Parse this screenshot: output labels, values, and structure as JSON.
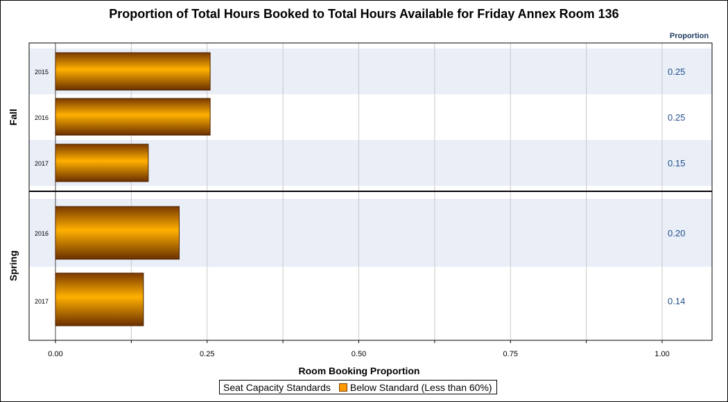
{
  "chart_data": {
    "type": "bar",
    "orientation": "horizontal",
    "title": "Proportion of Total Hours Booked to Total Hours Available for Friday Annex Room 136",
    "xlabel": "Room Booking Proportion",
    "value_column_header": "Proportion",
    "xlim": [
      0,
      1.08
    ],
    "xticks": [
      "0.00",
      "0.25",
      "0.50",
      "0.75",
      "1.00"
    ],
    "groups": [
      {
        "name": "Fall",
        "categories": [
          "2015",
          "2016",
          "2017"
        ],
        "values": [
          0.255,
          0.255,
          0.153
        ],
        "value_labels": [
          "0.25",
          "0.25",
          "0.15"
        ]
      },
      {
        "name": "Spring",
        "categories": [
          "2016",
          "2017"
        ],
        "values": [
          0.204,
          0.145
        ],
        "value_labels": [
          "0.20",
          "0.14"
        ]
      }
    ],
    "legend": {
      "title": "Seat Capacity Standards",
      "entries": [
        {
          "label": "Below Standard (Less than 60%)",
          "color": "#ff9900"
        }
      ],
      "position": "bottom"
    },
    "grid": true,
    "band_color": "#e9eef7",
    "bar_color": "#ff9900"
  }
}
